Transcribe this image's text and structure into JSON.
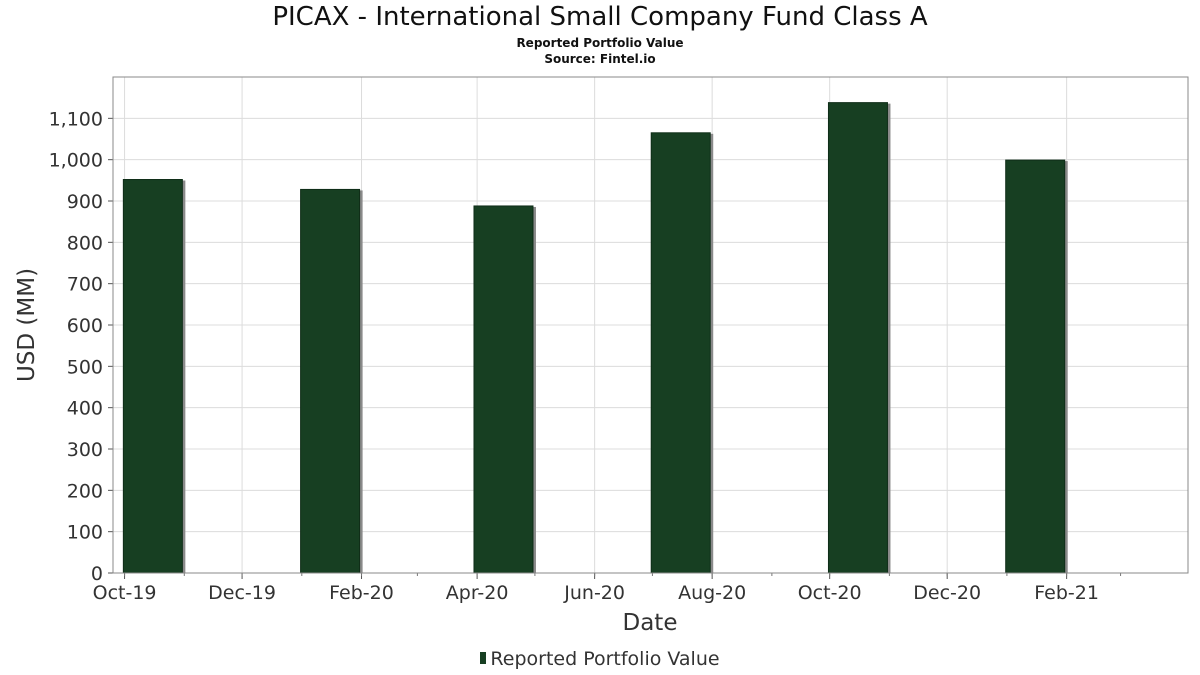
{
  "chart_data": {
    "type": "bar",
    "title": "PICAX - International Small Company Fund Class A",
    "subtitle": "Reported Portfolio Value",
    "source": "Source: Fintel.io",
    "xlabel": "Date",
    "ylabel": "USD (MM)",
    "ylim": [
      0,
      1200
    ],
    "yticks": [
      0,
      100,
      200,
      300,
      400,
      500,
      600,
      700,
      800,
      900,
      1000,
      1100
    ],
    "xlim": [
      "2019-09-25",
      "2021-04-05"
    ],
    "xticks": [
      {
        "date": "2019-10-01",
        "label": "Oct-19"
      },
      {
        "date": "2019-12-01",
        "label": "Dec-19"
      },
      {
        "date": "2020-02-01",
        "label": "Feb-20"
      },
      {
        "date": "2020-04-01",
        "label": "Apr-20"
      },
      {
        "date": "2020-06-01",
        "label": "Jun-20"
      },
      {
        "date": "2020-08-01",
        "label": "Aug-20"
      },
      {
        "date": "2020-10-01",
        "label": "Oct-20"
      },
      {
        "date": "2020-12-01",
        "label": "Dec-20"
      },
      {
        "date": "2021-02-01",
        "label": "Feb-21"
      }
    ],
    "grid": true,
    "legend_position": "bottom-center",
    "series": [
      {
        "name": "Reported Portfolio Value",
        "color": "#173f22",
        "points": [
          {
            "date": "2019-10-31",
            "value": 952
          },
          {
            "date": "2020-01-31",
            "value": 928
          },
          {
            "date": "2020-04-30",
            "value": 888
          },
          {
            "date": "2020-07-31",
            "value": 1065
          },
          {
            "date": "2020-10-31",
            "value": 1138
          },
          {
            "date": "2021-01-31",
            "value": 999
          }
        ]
      }
    ]
  }
}
